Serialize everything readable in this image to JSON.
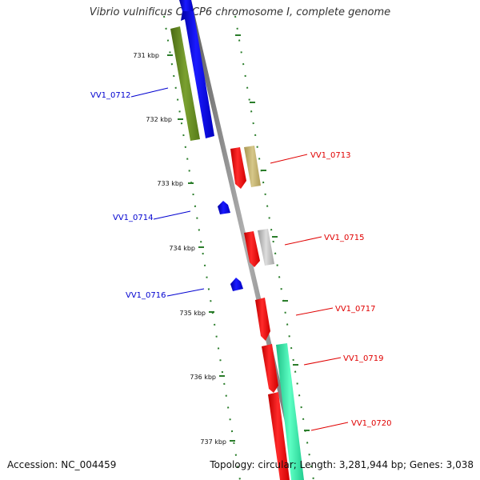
{
  "title": "Vibrio vulnificus CMCP6 chromosome I, complete genome",
  "accession": "Accession: NC_004459",
  "summary": "Topology: circular; Length: 3,281,944 bp; Genes: 3,038",
  "colors": {
    "plus_label": "#e00000",
    "minus_label": "#0000d0",
    "backbone": "#8a8a8a",
    "tick": "#2a7d2a",
    "cds_plus": "#ff0000",
    "cds_minus": "#0000ee"
  },
  "scale_labels": [
    "731 kbp",
    "732 kbp",
    "733 kbp",
    "734 kbp",
    "735 kbp",
    "736 kbp",
    "737 kbp"
  ],
  "genes": [
    {
      "name": "VV1_0712",
      "strand": "minus",
      "category_color": "#6b8e23"
    },
    {
      "name": "VV1_0713",
      "strand": "plus",
      "category_color": "#c2b26b"
    },
    {
      "name": "VV1_0714",
      "strand": "minus",
      "category_color": ""
    },
    {
      "name": "VV1_0715",
      "strand": "plus",
      "category_color": "#b8b8b8"
    },
    {
      "name": "VV1_0716",
      "strand": "minus",
      "category_color": ""
    },
    {
      "name": "VV1_0717",
      "strand": "plus",
      "category_color": ""
    },
    {
      "name": "VV1_0719",
      "strand": "plus",
      "category_color": "#2ef0a8"
    },
    {
      "name": "VV1_0720",
      "strand": "plus",
      "category_color": ""
    }
  ]
}
